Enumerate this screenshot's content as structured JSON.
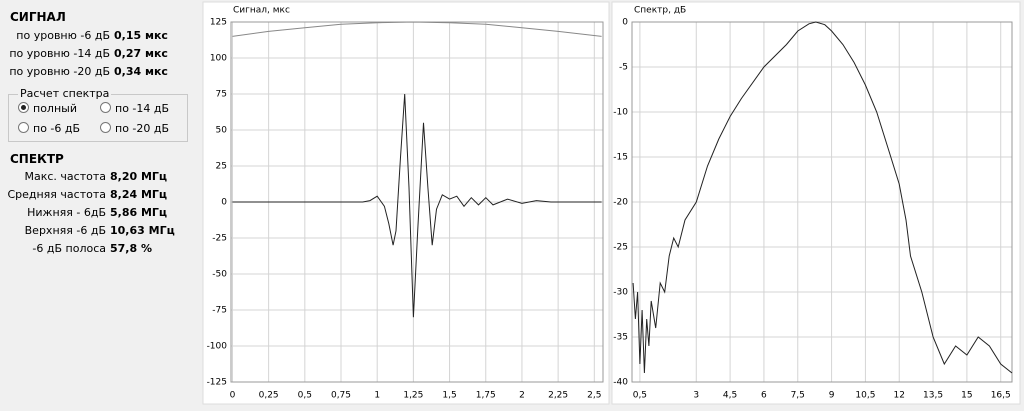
{
  "panel": {
    "signal_title": "СИГНАЛ",
    "signal_rows": [
      {
        "label": "по уровню -6 дБ",
        "value": "0,15 мкс"
      },
      {
        "label": "по уровню -14 дБ",
        "value": "0,27 мкс"
      },
      {
        "label": "по уровню -20 дБ",
        "value": "0,34 мкс"
      }
    ],
    "group_title": "Расчет спектра",
    "options": [
      "полный",
      "по -14 дБ",
      "по -6 дБ",
      "по -20 дБ"
    ],
    "selected": 0,
    "spectrum_title": "СПЕКТР",
    "spectrum_rows": [
      {
        "label": "Макс. частота",
        "value": "8,20 МГц"
      },
      {
        "label": "Средняя частота",
        "value": "8,24 МГц"
      },
      {
        "label": "Нижняя - 6дБ",
        "value": "5,86 МГц"
      },
      {
        "label": "Верхняя -6 дБ",
        "value": "10,63 МГц"
      },
      {
        "label": "-6 дБ полоса",
        "value": "57,8 %"
      }
    ]
  },
  "chart_data": [
    {
      "type": "line",
      "title": "Сигнал, мкс",
      "grid": true,
      "xlim": [
        -0.01,
        2.56
      ],
      "ylim": [
        -125,
        125
      ],
      "xticks": [
        0,
        {
          "value": 0.25,
          "label": "0,25"
        },
        {
          "value": 0.5,
          "label": "0,5"
        },
        {
          "value": 0.75,
          "label": "0,75"
        },
        1,
        {
          "value": 1.25,
          "label": "1,25"
        },
        {
          "value": 1.5,
          "label": "1,5"
        },
        {
          "value": 1.75,
          "label": "1,75"
        },
        2,
        {
          "value": 2.25,
          "label": "2,25"
        },
        {
          "value": 2.5,
          "label": "2,5"
        }
      ],
      "yticks": [
        125,
        100,
        75,
        50,
        25,
        0,
        -25,
        -50,
        -75,
        -100,
        -125
      ],
      "series": [
        {
          "color": "#888888",
          "x": [
            0,
            0.25,
            0.5,
            0.75,
            1.0,
            1.25,
            1.5,
            1.75,
            2.0,
            2.25,
            2.55
          ],
          "values": [
            115,
            118.5,
            121,
            123.5,
            124.5,
            125,
            124.5,
            123.5,
            121,
            118.5,
            115
          ]
        },
        {
          "color": "#222222",
          "x": [
            0,
            0.9,
            0.95,
            1.0,
            1.05,
            1.08,
            1.11,
            1.13,
            1.16,
            1.19,
            1.22,
            1.25,
            1.28,
            1.32,
            1.35,
            1.38,
            1.41,
            1.45,
            1.5,
            1.55,
            1.6,
            1.65,
            1.7,
            1.75,
            1.8,
            1.9,
            2.0,
            2.1,
            2.2,
            2.55
          ],
          "values": [
            0,
            0,
            1,
            4,
            -3,
            -15,
            -30,
            -20,
            30,
            75,
            10,
            -80,
            -20,
            55,
            10,
            -30,
            -5,
            5,
            2,
            4,
            -3,
            3,
            -2,
            3,
            -2,
            2,
            -1,
            1,
            0,
            0
          ]
        }
      ]
    },
    {
      "type": "line",
      "title": "Спектр, дБ",
      "grid": true,
      "xlim": [
        0.15,
        17
      ],
      "ylim": [
        -40,
        0
      ],
      "xticks": [
        {
          "value": 0.5,
          "label": "0,5"
        },
        3,
        {
          "value": 4.5,
          "label": "4,5"
        },
        6,
        {
          "value": 7.5,
          "label": "7,5"
        },
        9,
        {
          "value": 10.5,
          "label": "10,5"
        },
        12,
        {
          "value": 13.5,
          "label": "13,5"
        },
        15,
        {
          "value": 16.5,
          "label": "16,5"
        }
      ],
      "yticks": [
        0,
        -5,
        -10,
        -15,
        -20,
        -25,
        -30,
        -35,
        -40
      ],
      "series": [
        {
          "color": "#222222",
          "x": [
            0.2,
            0.3,
            0.4,
            0.5,
            0.6,
            0.7,
            0.8,
            0.9,
            1.0,
            1.2,
            1.4,
            1.6,
            1.8,
            2.0,
            2.2,
            2.5,
            3.0,
            3.5,
            4.0,
            4.5,
            5.0,
            6.0,
            7.0,
            7.5,
            8.0,
            8.3,
            8.7,
            9.0,
            9.5,
            10.0,
            10.5,
            11.0,
            11.5,
            12.0,
            12.3,
            12.5,
            13.0,
            13.5,
            14.0,
            14.5,
            15.0,
            15.5,
            16.0,
            16.5,
            17.0
          ],
          "values": [
            -29,
            -33,
            -30,
            -38,
            -32,
            -39,
            -33,
            -36,
            -31,
            -34,
            -29,
            -30,
            -26,
            -24,
            -25,
            -22,
            -20,
            -16,
            -13,
            -10.5,
            -8.5,
            -5,
            -2.5,
            -1,
            -0.2,
            0,
            -0.3,
            -1,
            -2.5,
            -4.5,
            -7,
            -10,
            -14,
            -18,
            -22,
            -26,
            -30,
            -35,
            -38,
            -36,
            -37,
            -35,
            -36,
            -38,
            -39
          ]
        }
      ]
    }
  ]
}
